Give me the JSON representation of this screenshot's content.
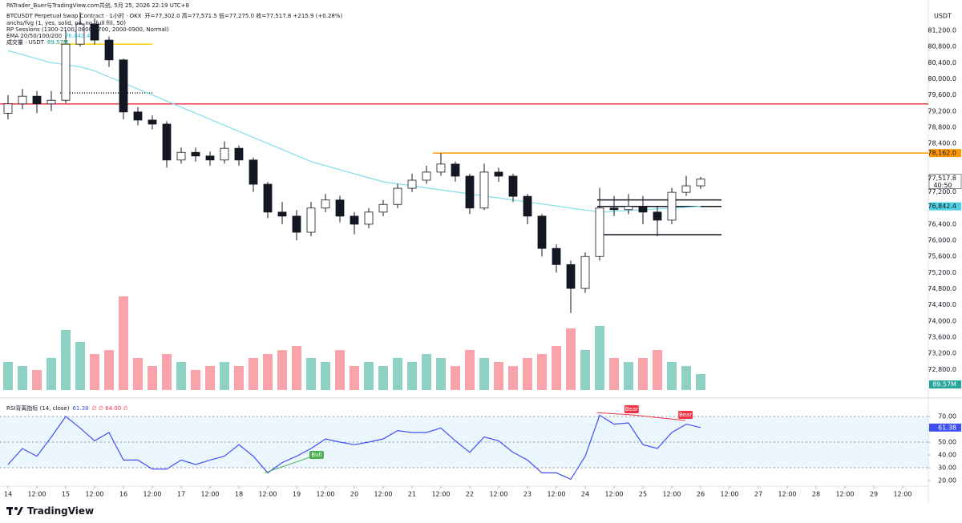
{
  "header": "PATrader_Buer与TradingView.com共创, 5月 25, 2026 22:19 UTC+8",
  "footer": "TradingView",
  "chart_data": {
    "type": "candlestick",
    "title": "BTCUSDT Perpetual Swap Contract · 1小时 · OKX",
    "ohlc_text": "开=77,302.0 高=77,571.5 低=77,275.0 收=77,517.8 +215.9 (+0.28%)",
    "indicators": [
      "anchs/fvg (1, yes, solid, no, no, full fill, 50)",
      "RP Sessions (1300-2100, 0800-1700, 2000-0900, Normal)",
      "EMA 20/50/100/200",
      "成交量 · USDT"
    ],
    "ema_label": "76,842.4",
    "volume_label": "89.57M",
    "currency": "USDT",
    "up_color": "#089981",
    "down_color": "#f23645",
    "x": [
      0,
      6,
      12,
      18,
      24,
      30,
      36,
      42,
      48,
      54,
      60,
      66,
      72,
      78,
      84,
      90,
      96,
      102,
      108,
      114,
      120,
      126,
      132,
      138,
      144,
      150,
      156,
      162,
      168,
      174,
      180,
      186,
      192,
      198,
      204,
      210,
      216,
      222,
      228,
      234,
      240,
      246,
      252,
      258,
      264,
      270,
      276,
      282,
      288
    ],
    "xlim": [
      -3.33,
      382.67
    ],
    "xticks": [
      {
        "value": 0,
        "label": "14"
      },
      {
        "value": 12,
        "label": "12:00"
      },
      {
        "value": 24,
        "label": "15"
      },
      {
        "value": 36,
        "label": "12:00"
      },
      {
        "value": 48,
        "label": "16"
      },
      {
        "value": 60,
        "label": "12:00"
      },
      {
        "value": 72,
        "label": "17"
      },
      {
        "value": 84,
        "label": "12:00"
      },
      {
        "value": 96,
        "label": "18"
      },
      {
        "value": 108,
        "label": "12:00"
      },
      {
        "value": 120,
        "label": "19"
      },
      {
        "value": 132,
        "label": "12:00"
      },
      {
        "value": 144,
        "label": "20"
      },
      {
        "value": 156,
        "label": "12:00"
      },
      {
        "value": 168,
        "label": "21"
      },
      {
        "value": 180,
        "label": "12:00"
      },
      {
        "value": 192,
        "label": "22"
      },
      {
        "value": 204,
        "label": "12:00"
      },
      {
        "value": 216,
        "label": "23"
      },
      {
        "value": 228,
        "label": "12:00"
      },
      {
        "value": 240,
        "label": "24"
      },
      {
        "value": 252,
        "label": "12:00"
      },
      {
        "value": 264,
        "label": "25"
      },
      {
        "value": 276,
        "label": "12:00"
      },
      {
        "value": 288,
        "label": "26"
      },
      {
        "value": 300,
        "label": "12:00"
      },
      {
        "value": 312,
        "label": "27"
      },
      {
        "value": 324,
        "label": "12:00"
      },
      {
        "value": 336,
        "label": "28"
      },
      {
        "value": 348,
        "label": "12:00"
      },
      {
        "value": 360,
        "label": "29"
      },
      {
        "value": 372,
        "label": "12:00"
      }
    ],
    "open": [
      79150,
      79380,
      79570,
      79380,
      79470,
      80860,
      81360,
      80960,
      80470,
      79180,
      78980,
      78880,
      77990,
      78180,
      78090,
      77990,
      78280,
      77990,
      77390,
      76700,
      76600,
      76200,
      76800,
      77000,
      76600,
      76400,
      76700,
      76890,
      77290,
      77490,
      77690,
      77890,
      77590,
      76800,
      77690,
      77590,
      77090,
      76600,
      75800,
      75400,
      74810,
      75600,
      76800,
      76760,
      76840,
      76700,
      76500,
      77190,
      77350
    ],
    "high": [
      79600,
      79750,
      79700,
      79700,
      81200,
      81650,
      81500,
      81050,
      80500,
      79300,
      79100,
      78950,
      78300,
      78300,
      78200,
      78450,
      78350,
      78050,
      77450,
      76950,
      76750,
      76950,
      77150,
      77100,
      76700,
      76800,
      77000,
      77400,
      77650,
      77850,
      78160,
      77950,
      77650,
      77900,
      77800,
      77650,
      77150,
      76650,
      75900,
      75500,
      75700,
      77300,
      77100,
      77150,
      77100,
      76850,
      77300,
      77600,
      77571.5
    ],
    "low": [
      79000,
      79250,
      79150,
      79200,
      79400,
      80800,
      80850,
      80300,
      79000,
      78850,
      78750,
      77800,
      77900,
      77950,
      77850,
      77900,
      77850,
      77200,
      76550,
      76400,
      76000,
      76100,
      76700,
      76450,
      76150,
      76300,
      76600,
      76800,
      77200,
      77400,
      77600,
      77450,
      76650,
      76750,
      77450,
      76950,
      76400,
      75600,
      75200,
      74200,
      74700,
      75500,
      76600,
      76650,
      76400,
      76100,
      76400,
      77100,
      77275
    ],
    "close": [
      79380,
      79570,
      79380,
      79470,
      80860,
      81360,
      80960,
      80470,
      79180,
      78980,
      78880,
      77990,
      78180,
      78090,
      77990,
      78280,
      77990,
      77390,
      76700,
      76600,
      76200,
      76800,
      77000,
      76600,
      76400,
      76700,
      76890,
      77290,
      77490,
      77690,
      77890,
      77590,
      76800,
      77690,
      77590,
      77090,
      76600,
      75800,
      75400,
      74810,
      75600,
      76800,
      76760,
      76840,
      76700,
      76500,
      77190,
      77350,
      77517.8
    ],
    "ylim": [
      72232,
      81954
    ],
    "yticks": [
      {
        "value": 81200,
        "label": "81,200.0"
      },
      {
        "value": 80800,
        "label": "80,800.0"
      },
      {
        "value": 80400,
        "label": "80,400.0"
      },
      {
        "value": 80000,
        "label": "80,000.0"
      },
      {
        "value": 79600,
        "label": "79,600.0"
      },
      {
        "value": 79200,
        "label": "79,200.0"
      },
      {
        "value": 78800,
        "label": "78,800.0"
      },
      {
        "value": 78400,
        "label": "78,400.0"
      },
      {
        "value": 77200,
        "label": "77,200.0"
      },
      {
        "value": 76400,
        "label": "76,400.0"
      },
      {
        "value": 76000,
        "label": "76,000.0"
      },
      {
        "value": 75600,
        "label": "75,600.0"
      },
      {
        "value": 75200,
        "label": "75,200.0"
      },
      {
        "value": 74800,
        "label": "74,800.0"
      },
      {
        "value": 74400,
        "label": "74,400.0"
      },
      {
        "value": 74000,
        "label": "74,000.0"
      },
      {
        "value": 73600,
        "label": "73,600.0"
      },
      {
        "value": 73200,
        "label": "73,200.0"
      },
      {
        "value": 72800,
        "label": "72,800.0"
      }
    ],
    "ema": {
      "color": "#80deea",
      "values": [
        80700,
        80600,
        80500,
        80400,
        80350,
        80300,
        80200,
        80050,
        79900,
        79750,
        79600,
        79450,
        79300,
        79150,
        79000,
        78850,
        78700,
        78550,
        78400,
        78250,
        78100,
        77950,
        77850,
        77750,
        77650,
        77550,
        77450,
        77400,
        77350,
        77300,
        77250,
        77200,
        77150,
        77100,
        77050,
        77000,
        76950,
        76900,
        76850,
        76800,
        76750,
        76700,
        76720,
        76740,
        76760,
        76780,
        76800,
        76820,
        76842.4
      ]
    },
    "volume": {
      "ylim": [
        0,
        150
      ],
      "values": [
        35,
        30,
        25,
        40,
        75,
        60,
        45,
        50,
        117,
        40,
        30,
        45,
        35,
        25,
        30,
        35,
        30,
        40,
        45,
        50,
        55,
        40,
        35,
        50,
        30,
        35,
        30,
        40,
        35,
        45,
        40,
        30,
        50,
        40,
        35,
        30,
        40,
        45,
        55,
        77,
        50,
        80,
        40,
        35,
        40,
        50,
        35,
        30,
        20
      ]
    },
    "levels": [
      {
        "value": 79380,
        "color": "#f23645"
      },
      {
        "value": 78162,
        "color": "#ff9800",
        "label": "78,162.0",
        "from": 176.7
      },
      {
        "value": 80860,
        "color": "#f5d000",
        "from": 21.7,
        "to": 60
      },
      {
        "value": 79650,
        "color": "#131722",
        "style": "dotted",
        "from": 21.7,
        "to": 60
      },
      {
        "value": 77000,
        "color": "#131722",
        "from": 245,
        "to": 296.7
      },
      {
        "value": 76840,
        "color": "#131722",
        "from": 245,
        "to": 296.7
      },
      {
        "value": 76140,
        "color": "#131722",
        "from": 245,
        "to": 296.7
      }
    ],
    "last_price": {
      "value": 77517.8,
      "label": "77,517.8",
      "countdown": "40:50"
    },
    "rsi": {
      "title": "RSI背离指标 (14, close)",
      "value_label": "61.38",
      "params": "∅ ∅ 64.00 ∅",
      "color": "#3f51f5",
      "values": [
        32.5,
        45,
        39,
        54,
        70,
        61,
        51,
        57.5,
        36,
        36,
        29,
        29,
        36,
        32.5,
        36,
        39,
        48,
        39,
        26,
        34,
        39,
        45,
        52.5,
        50,
        48,
        50,
        52.5,
        59,
        57.5,
        57.5,
        61,
        51,
        42,
        54,
        51,
        42,
        36,
        26,
        26,
        21,
        39,
        71,
        64,
        65,
        48,
        45,
        57.5,
        64,
        61.38
      ],
      "ylim": [
        16.9,
        79.4
      ],
      "yticks": [
        {
          "value": 70,
          "label": "70.00"
        },
        {
          "value": 60,
          "label": "60.00"
        },
        {
          "value": 50,
          "label": "50.00"
        },
        {
          "value": 40,
          "label": "40.00"
        },
        {
          "value": 30,
          "label": "30.00"
        },
        {
          "value": 20,
          "label": "20.00"
        }
      ],
      "band": [
        30,
        70
      ],
      "midline": 50,
      "divergences": [
        {
          "label": "Bull",
          "color": "#4caf50",
          "from": [
            106.7,
            26
          ],
          "to": [
            128.3,
            40
          ]
        },
        {
          "label": "Bear",
          "color": "#f23645",
          "from": [
            245,
            73
          ],
          "to": [
            259.3,
            71.3
          ]
        },
        {
          "label": "Bear",
          "color": "#f23645",
          "from": [
            259.3,
            71.3
          ],
          "to": [
            281.7,
            66.9
          ]
        }
      ]
    }
  }
}
